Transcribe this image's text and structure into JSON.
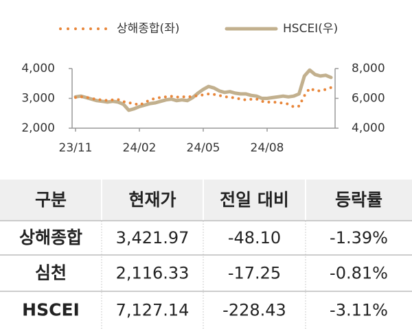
{
  "chart_data": {
    "type": "line",
    "categories": [
      "23/11",
      null,
      null,
      null,
      null,
      null,
      null,
      null,
      null,
      null,
      null,
      null,
      "24/02",
      null,
      null,
      null,
      null,
      null,
      null,
      null,
      null,
      null,
      null,
      null,
      "24/05",
      null,
      null,
      null,
      null,
      null,
      null,
      null,
      null,
      null,
      null,
      null,
      "24/08",
      null,
      null,
      null,
      null,
      null,
      null,
      null,
      null,
      null,
      null,
      null,
      null
    ],
    "series": [
      {
        "name": "상해종합(좌)",
        "color": "#e8863a",
        "style": "dotted",
        "values": [
          3030,
          3050,
          3040,
          2990,
          2970,
          2940,
          2930,
          2950,
          2960,
          2890,
          2850,
          2830,
          2770,
          2860,
          2950,
          3000,
          3030,
          3050,
          3070,
          3040,
          3060,
          3040,
          3070,
          3090,
          3120,
          3150,
          3130,
          3100,
          3060,
          3030,
          3020,
          2970,
          2950,
          2970,
          2980,
          2900,
          2870,
          2880,
          2860,
          2840,
          2810,
          2710,
          2740,
          3090,
          3340,
          3260,
          3250,
          3300,
          3360
        ]
      },
      {
        "name": "HSCEI(우)",
        "color": "#c2b08e",
        "style": "solid",
        "axis": "y2",
        "values": [
          6100,
          6150,
          6050,
          5950,
          5850,
          5800,
          5750,
          5800,
          5750,
          5600,
          5200,
          5300,
          5450,
          5550,
          5650,
          5700,
          5800,
          5900,
          5950,
          5850,
          5900,
          5850,
          6050,
          6350,
          6600,
          6800,
          6700,
          6500,
          6400,
          6450,
          6350,
          6300,
          6300,
          6200,
          6150,
          6000,
          6000,
          6050,
          6100,
          6150,
          6100,
          6150,
          6300,
          7500,
          7900,
          7600,
          7500,
          7550,
          7400
        ]
      }
    ],
    "ylim": [
      2000,
      4000
    ],
    "yticks": [
      {
        "value": 2000,
        "label": "2,000"
      },
      {
        "value": 3000,
        "label": "3,000"
      },
      {
        "value": 4000,
        "label": "4,000"
      }
    ],
    "y2lim": [
      4000,
      8000
    ],
    "y2ticks": [
      {
        "value": 4000,
        "label": "4,000"
      },
      {
        "value": 6000,
        "label": "6,000"
      },
      {
        "value": 8000,
        "label": "8,000"
      }
    ],
    "legend": "top"
  },
  "table": {
    "header": [
      "구분",
      "현재가",
      "전일 대비",
      "등락률"
    ],
    "rows": [
      [
        "상해종합",
        "3,421.97",
        "-48.10",
        "-1.39%"
      ],
      [
        "심천",
        "2,116.33",
        "-17.25",
        "-0.81%"
      ],
      [
        "HSCEI",
        "7,127.14",
        "-228.43",
        "-3.11%"
      ]
    ]
  }
}
